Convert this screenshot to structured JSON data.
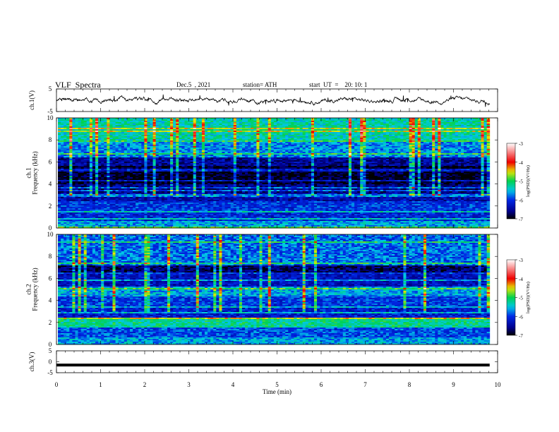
{
  "header": {
    "title": "VLF  Spectra",
    "date": "Dec.5  , 2021",
    "station": "station= ATH",
    "start": "start  UT  =    20: 10: 1"
  },
  "chart_data": [
    {
      "type": "line",
      "panel": "ch1-waveform",
      "ylabel": "ch.1(V)",
      "ylim": [
        -5,
        5
      ],
      "y_ticks": [
        "5",
        "-5"
      ],
      "xlim": [
        0,
        10
      ],
      "baseline": 0,
      "color": "#000000"
    },
    {
      "type": "heatmap",
      "panel": "ch1-spectrogram",
      "ylabel": "ch.1\nFrequency  (kHz)",
      "ylim": [
        0,
        10
      ],
      "y_ticks": [
        "0",
        "2",
        "4",
        "6",
        "8",
        "10"
      ],
      "xlim": [
        0,
        10
      ],
      "x_extent": [
        0,
        9.82
      ],
      "bands_khz": [
        {
          "f": [
            0.0,
            0.6
          ],
          "level": -5.6
        },
        {
          "f": [
            0.6,
            1.6
          ],
          "level": -6.1
        },
        {
          "f": [
            1.6,
            2.4
          ],
          "level": -6.0
        },
        {
          "f": [
            2.4,
            3.2
          ],
          "level": -6.4
        },
        {
          "f": [
            3.2,
            4.0
          ],
          "level": -6.6
        },
        {
          "f": [
            4.0,
            5.6
          ],
          "level": -6.9
        },
        {
          "f": [
            5.6,
            6.4
          ],
          "level": -6.5
        },
        {
          "f": [
            6.4,
            8.0
          ],
          "level": -5.7
        },
        {
          "f": [
            8.0,
            10.0
          ],
          "level": -5.3
        }
      ],
      "colorbar": {
        "min": -7,
        "max": -3,
        "ticks": [
          "-3",
          "-4",
          "-5",
          "-6",
          "-7"
        ],
        "label": "log(PSD)(V²/Hz)"
      }
    },
    {
      "type": "heatmap",
      "panel": "ch2-spectrogram",
      "ylabel": "ch.2\nFrequency  (kHz)",
      "ylim": [
        0,
        10
      ],
      "y_ticks": [
        "0",
        "2",
        "4",
        "6",
        "8",
        "10"
      ],
      "xlim": [
        0,
        10
      ],
      "x_extent": [
        0,
        9.82
      ],
      "bands_khz": [
        {
          "f": [
            0.0,
            0.6
          ],
          "level": -5.6
        },
        {
          "f": [
            0.6,
            1.6
          ],
          "level": -5.9
        },
        {
          "f": [
            1.6,
            2.4
          ],
          "level": -5.2
        },
        {
          "f": [
            2.4,
            3.4
          ],
          "level": -6.2
        },
        {
          "f": [
            3.4,
            4.4
          ],
          "level": -6.0
        },
        {
          "f": [
            4.4,
            5.2
          ],
          "level": -5.6
        },
        {
          "f": [
            5.2,
            6.4
          ],
          "level": -6.3
        },
        {
          "f": [
            6.4,
            7.2
          ],
          "level": -6.7
        },
        {
          "f": [
            7.2,
            10.0
          ],
          "level": -5.8
        }
      ],
      "colorbar": {
        "min": -7,
        "max": -3,
        "ticks": [
          "-3",
          "-4",
          "-5",
          "-6",
          "-7"
        ],
        "label": "log(PSD)(V²/Hz)"
      }
    },
    {
      "type": "line",
      "panel": "ch3-waveform",
      "ylabel": "ch.3(V)",
      "ylim": [
        -5,
        5
      ],
      "y_ticks": [
        "5",
        "0",
        "-5"
      ],
      "xlim": [
        0,
        10
      ],
      "baseline": -1.5,
      "color": "#000000"
    }
  ],
  "x_axis": {
    "label": "Time  (min)",
    "ticks": [
      "0",
      "1",
      "2",
      "3",
      "4",
      "5",
      "6",
      "7",
      "8",
      "9",
      "10"
    ]
  }
}
